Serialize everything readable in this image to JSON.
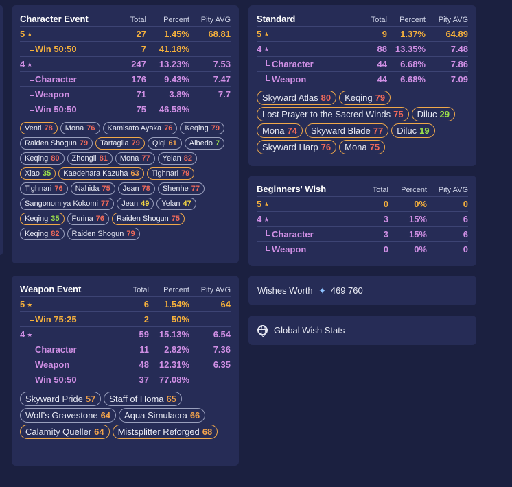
{
  "columns": {
    "total": "Total",
    "percent": "Percent",
    "pity": "Pity AVG"
  },
  "character_event": {
    "title": "Character Event",
    "rows": [
      {
        "label": "5",
        "star": "★",
        "total": "27",
        "percent": "1.45%",
        "pity": "68.81",
        "tier": "5",
        "sub": false
      },
      {
        "label": "Win 50:50",
        "star": "",
        "total": "7",
        "percent": "41.18%",
        "pity": "",
        "tier": "5",
        "sub": true
      },
      {
        "label": "4",
        "star": "★",
        "total": "247",
        "percent": "13.23%",
        "pity": "7.53",
        "tier": "4",
        "sub": false
      },
      {
        "label": "Character",
        "star": "",
        "total": "176",
        "percent": "9.43%",
        "pity": "7.47",
        "tier": "4",
        "sub": true
      },
      {
        "label": "Weapon",
        "star": "",
        "total": "71",
        "percent": "3.8%",
        "pity": "7.7",
        "tier": "4",
        "sub": true
      },
      {
        "label": "Win 50:50",
        "star": "",
        "total": "75",
        "percent": "46.58%",
        "pity": "",
        "tier": "4",
        "sub": true
      }
    ],
    "chips": [
      {
        "name": "Venti",
        "num": "78",
        "border": "g",
        "color": "red"
      },
      {
        "name": "Mona",
        "num": "76",
        "border": "p",
        "color": "red"
      },
      {
        "name": "Kamisato Ayaka",
        "num": "76",
        "border": "p",
        "color": "red"
      },
      {
        "name": "Keqing",
        "num": "79",
        "border": "p",
        "color": "red"
      },
      {
        "name": "Raiden Shogun",
        "num": "79",
        "border": "p",
        "color": "red"
      },
      {
        "name": "Tartaglia",
        "num": "79",
        "border": "g",
        "color": "red"
      },
      {
        "name": "Qiqi",
        "num": "61",
        "border": "p",
        "color": "orange"
      },
      {
        "name": "Albedo",
        "num": "7",
        "border": "p",
        "color": "green"
      },
      {
        "name": "Keqing",
        "num": "80",
        "border": "p",
        "color": "red"
      },
      {
        "name": "Zhongli",
        "num": "81",
        "border": "p",
        "color": "red"
      },
      {
        "name": "Mona",
        "num": "77",
        "border": "p",
        "color": "red"
      },
      {
        "name": "Yelan",
        "num": "82",
        "border": "p",
        "color": "red"
      },
      {
        "name": "Xiao",
        "num": "35",
        "border": "g",
        "color": "green"
      },
      {
        "name": "Kaedehara Kazuha",
        "num": "63",
        "border": "g",
        "color": "orange"
      },
      {
        "name": "Tighnari",
        "num": "79",
        "border": "g",
        "color": "red"
      },
      {
        "name": "Tighnari",
        "num": "76",
        "border": "p",
        "color": "red"
      },
      {
        "name": "Nahida",
        "num": "75",
        "border": "p",
        "color": "red"
      },
      {
        "name": "Jean",
        "num": "78",
        "border": "p",
        "color": "red"
      },
      {
        "name": "Shenhe",
        "num": "77",
        "border": "p",
        "color": "red"
      },
      {
        "name": "Sangonomiya Kokomi",
        "num": "77",
        "border": "p",
        "color": "red"
      },
      {
        "name": "Jean",
        "num": "49",
        "border": "p",
        "color": "yellow"
      },
      {
        "name": "Yelan",
        "num": "47",
        "border": "p",
        "color": "yellow"
      },
      {
        "name": "Keqing",
        "num": "35",
        "border": "g",
        "color": "green"
      },
      {
        "name": "Furina",
        "num": "76",
        "border": "p",
        "color": "red"
      },
      {
        "name": "Raiden Shogun",
        "num": "75",
        "border": "g",
        "color": "red"
      },
      {
        "name": "Keqing",
        "num": "82",
        "border": "p",
        "color": "red"
      },
      {
        "name": "Raiden Shogun",
        "num": "79",
        "border": "p",
        "color": "red"
      }
    ]
  },
  "standard": {
    "title": "Standard",
    "rows": [
      {
        "label": "5",
        "star": "★",
        "total": "9",
        "percent": "1.37%",
        "pity": "64.89",
        "tier": "5",
        "sub": false
      },
      {
        "label": "4",
        "star": "★",
        "total": "88",
        "percent": "13.35%",
        "pity": "7.48",
        "tier": "4",
        "sub": false
      },
      {
        "label": "Character",
        "star": "",
        "total": "44",
        "percent": "6.68%",
        "pity": "7.86",
        "tier": "4",
        "sub": true
      },
      {
        "label": "Weapon",
        "star": "",
        "total": "44",
        "percent": "6.68%",
        "pity": "7.09",
        "tier": "4",
        "sub": true
      }
    ],
    "chips": [
      {
        "name": "Skyward Atlas",
        "num": "80",
        "border": "g",
        "color": "red"
      },
      {
        "name": "Keqing",
        "num": "79",
        "border": "g",
        "color": "red"
      },
      {
        "name": "Lost Prayer to the Sacred Winds",
        "num": "75",
        "border": "g",
        "color": "red"
      },
      {
        "name": "Diluc",
        "num": "29",
        "border": "g",
        "color": "green"
      },
      {
        "name": "Mona",
        "num": "74",
        "border": "g",
        "color": "red"
      },
      {
        "name": "Skyward Blade",
        "num": "77",
        "border": "g",
        "color": "red"
      },
      {
        "name": "Diluc",
        "num": "19",
        "border": "g",
        "color": "green"
      },
      {
        "name": "Skyward Harp",
        "num": "76",
        "border": "g",
        "color": "red"
      },
      {
        "name": "Mona",
        "num": "75",
        "border": "g",
        "color": "red"
      }
    ]
  },
  "beginners": {
    "title": "Beginners' Wish",
    "rows": [
      {
        "label": "5",
        "star": "★",
        "total": "0",
        "percent": "0%",
        "pity": "0",
        "tier": "5",
        "sub": false
      },
      {
        "label": "4",
        "star": "★",
        "total": "3",
        "percent": "15%",
        "pity": "6",
        "tier": "4",
        "sub": false
      },
      {
        "label": "Character",
        "star": "",
        "total": "3",
        "percent": "15%",
        "pity": "6",
        "tier": "4",
        "sub": true
      },
      {
        "label": "Weapon",
        "star": "",
        "total": "0",
        "percent": "0%",
        "pity": "0",
        "tier": "4",
        "sub": true
      }
    ]
  },
  "weapon_event": {
    "title": "Weapon Event",
    "rows": [
      {
        "label": "5",
        "star": "★",
        "total": "6",
        "percent": "1.54%",
        "pity": "64",
        "tier": "5",
        "sub": false
      },
      {
        "label": "Win 75:25",
        "star": "",
        "total": "2",
        "percent": "50%",
        "pity": "",
        "tier": "5",
        "sub": true
      },
      {
        "label": "4",
        "star": "★",
        "total": "59",
        "percent": "15.13%",
        "pity": "6.54",
        "tier": "4",
        "sub": false
      },
      {
        "label": "Character",
        "star": "",
        "total": "11",
        "percent": "2.82%",
        "pity": "7.36",
        "tier": "4",
        "sub": true
      },
      {
        "label": "Weapon",
        "star": "",
        "total": "48",
        "percent": "12.31%",
        "pity": "6.35",
        "tier": "4",
        "sub": true
      },
      {
        "label": "Win 50:50",
        "star": "",
        "total": "37",
        "percent": "77.08%",
        "pity": "",
        "tier": "4",
        "sub": true
      }
    ],
    "chips": [
      {
        "name": "Skyward Pride",
        "num": "57",
        "border": "p",
        "color": "orange"
      },
      {
        "name": "Staff of Homa",
        "num": "65",
        "border": "p",
        "color": "orange"
      },
      {
        "name": "Wolf's Gravestone",
        "num": "64",
        "border": "p",
        "color": "orange"
      },
      {
        "name": "Aqua Simulacra",
        "num": "66",
        "border": "p",
        "color": "orange"
      },
      {
        "name": "Calamity Queller",
        "num": "64",
        "border": "g",
        "color": "orange"
      },
      {
        "name": "Mistsplitter Reforged",
        "num": "68",
        "border": "g",
        "color": "orange"
      }
    ]
  },
  "wishes_worth": {
    "label": "Wishes Worth",
    "icon": "primogem-icon",
    "value": "469 760"
  },
  "global_stats": {
    "label": "Global Wish Stats",
    "icon": "globe-icon"
  }
}
